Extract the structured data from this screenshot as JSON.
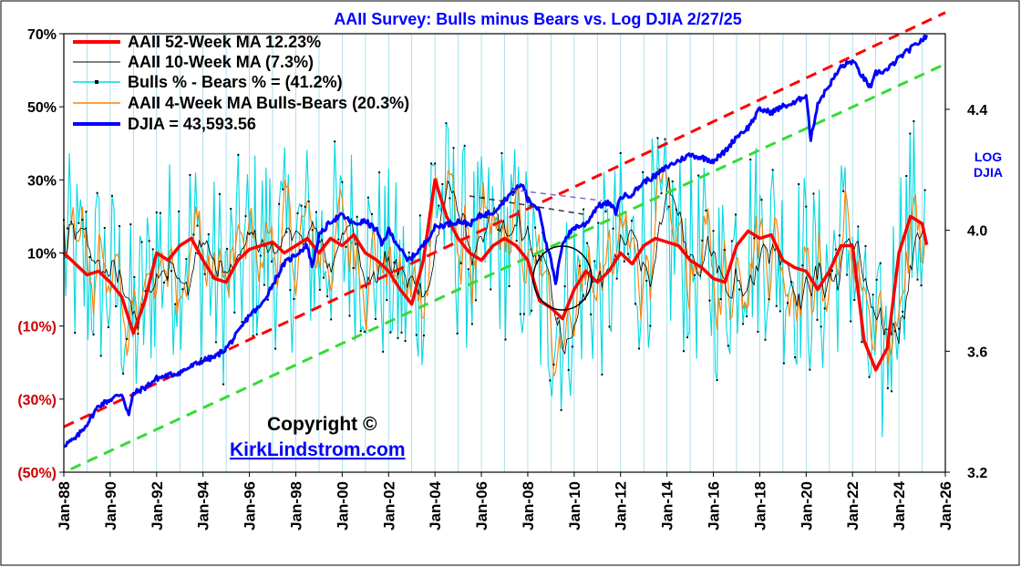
{
  "chart_data": {
    "type": "line",
    "title": "AAII Survey: Bulls minus Bears vs. Log DJIA  2/27/25",
    "y_right_label_line1": "LOG",
    "y_right_label_line2": "DJIA",
    "x_ticks": [
      "Jan-88",
      "Jan-90",
      "Jan-92",
      "Jan-94",
      "Jan-96",
      "Jan-98",
      "Jan-00",
      "Jan-02",
      "Jan-04",
      "Jan-06",
      "Jan-08",
      "Jan-10",
      "Jan-12",
      "Jan-14",
      "Jan-16",
      "Jan-18",
      "Jan-20",
      "Jan-22",
      "Jan-24",
      "Jan-26"
    ],
    "x_range": [
      1988,
      2026
    ],
    "y_left_ticks": [
      {
        "value": 70,
        "label": "70%"
      },
      {
        "value": 50,
        "label": "50%"
      },
      {
        "value": 30,
        "label": "30%"
      },
      {
        "value": 10,
        "label": "10%"
      },
      {
        "value": -10,
        "label": "(10%)"
      },
      {
        "value": -30,
        "label": "(30%)"
      },
      {
        "value": -50,
        "label": "(50%)"
      }
    ],
    "y_left_range": [
      -50,
      70
    ],
    "y_right_ticks": [
      {
        "value": 4.4,
        "label": "4.4"
      },
      {
        "value": 4.0,
        "label": "4.0"
      },
      {
        "value": 3.6,
        "label": "3.6"
      },
      {
        "value": 3.2,
        "label": "3.2"
      }
    ],
    "y_right_range": [
      3.2,
      4.65
    ],
    "grid": "vertical",
    "legend_position": "top-left",
    "series": [
      {
        "name": "AAII 52-Week MA 12.23%",
        "axis": "left",
        "color": "#ff0000",
        "x": [
          1988.0,
          1988.5,
          1989.0,
          1989.5,
          1990.0,
          1990.5,
          1991.0,
          1991.5,
          1992.0,
          1992.5,
          1993.0,
          1993.5,
          1994.0,
          1994.5,
          1995.0,
          1995.5,
          1996.0,
          1996.5,
          1997.0,
          1997.5,
          1998.0,
          1998.5,
          1999.0,
          1999.5,
          2000.0,
          2000.5,
          2001.0,
          2001.5,
          2002.0,
          2002.5,
          2003.0,
          2003.5,
          2004.0,
          2004.5,
          2005.0,
          2005.5,
          2006.0,
          2006.5,
          2007.0,
          2007.5,
          2008.0,
          2008.5,
          2009.0,
          2009.5,
          2010.0,
          2010.5,
          2011.0,
          2011.5,
          2012.0,
          2012.5,
          2013.0,
          2013.5,
          2014.0,
          2014.5,
          2015.0,
          2015.5,
          2016.0,
          2016.5,
          2017.0,
          2017.5,
          2018.0,
          2018.5,
          2019.0,
          2019.5,
          2020.0,
          2020.5,
          2021.0,
          2021.5,
          2022.0,
          2022.5,
          2023.0,
          2023.5,
          2024.0,
          2024.5,
          2025.0,
          2025.2
        ],
        "y": [
          10,
          7,
          4,
          5,
          2,
          -2,
          -12,
          -3,
          10,
          8,
          12,
          14,
          8,
          3,
          2,
          8,
          11,
          12,
          13,
          10,
          12,
          14,
          10,
          14,
          12,
          15,
          10,
          8,
          5,
          0,
          -4,
          8,
          30,
          20,
          14,
          10,
          8,
          12,
          14,
          12,
          8,
          -3,
          -5,
          -8,
          0,
          5,
          2,
          5,
          10,
          7,
          12,
          14,
          13,
          12,
          8,
          6,
          3,
          2,
          12,
          16,
          14,
          15,
          8,
          6,
          5,
          0,
          5,
          12,
          12,
          -14,
          -22,
          -16,
          10,
          20,
          18,
          12.23
        ]
      },
      {
        "name": "DJIA =  43,593.56",
        "axis": "right",
        "color": "#0000ff",
        "x": [
          1988.0,
          1988.5,
          1989.0,
          1989.5,
          1990.0,
          1990.5,
          1990.8,
          1991.0,
          1991.5,
          1992.0,
          1992.5,
          1993.0,
          1993.5,
          1994.0,
          1994.5,
          1995.0,
          1995.5,
          1996.0,
          1996.5,
          1997.0,
          1997.5,
          1998.0,
          1998.5,
          1998.7,
          1999.0,
          1999.5,
          2000.0,
          2000.5,
          2001.0,
          2001.5,
          2001.7,
          2002.0,
          2002.5,
          2002.8,
          2003.0,
          2003.5,
          2004.0,
          2004.5,
          2005.0,
          2005.5,
          2006.0,
          2006.5,
          2007.0,
          2007.5,
          2007.8,
          2008.0,
          2008.5,
          2008.8,
          2009.0,
          2009.2,
          2009.5,
          2010.0,
          2010.5,
          2011.0,
          2011.5,
          2011.8,
          2012.0,
          2012.5,
          2013.0,
          2013.5,
          2014.0,
          2014.5,
          2015.0,
          2015.5,
          2016.0,
          2016.5,
          2017.0,
          2017.5,
          2018.0,
          2018.5,
          2019.0,
          2019.5,
          2020.0,
          2020.2,
          2020.5,
          2021.0,
          2021.5,
          2022.0,
          2022.5,
          2022.8,
          2023.0,
          2023.5,
          2024.0,
          2024.5,
          2025.0,
          2025.2
        ],
        "y": [
          3.29,
          3.31,
          3.36,
          3.42,
          3.44,
          3.46,
          3.39,
          3.46,
          3.48,
          3.51,
          3.52,
          3.53,
          3.55,
          3.57,
          3.58,
          3.61,
          3.66,
          3.72,
          3.75,
          3.82,
          3.89,
          3.92,
          3.95,
          3.88,
          3.98,
          4.03,
          4.05,
          4.02,
          4.03,
          4.0,
          3.95,
          4.0,
          3.94,
          3.9,
          3.91,
          3.95,
          4.01,
          4.02,
          4.03,
          4.02,
          4.05,
          4.06,
          4.1,
          4.14,
          4.15,
          4.1,
          4.07,
          3.95,
          3.9,
          3.82,
          3.96,
          4.01,
          4.02,
          4.08,
          4.09,
          4.06,
          4.11,
          4.12,
          4.16,
          4.18,
          4.21,
          4.23,
          4.25,
          4.24,
          4.23,
          4.26,
          4.31,
          4.34,
          4.4,
          4.39,
          4.41,
          4.42,
          4.45,
          4.3,
          4.42,
          4.48,
          4.54,
          4.56,
          4.5,
          4.47,
          4.52,
          4.53,
          4.57,
          4.6,
          4.63,
          4.64
        ]
      }
    ],
    "noisy_series": [
      {
        "name": "AAII 10-Week MA (7.3%)",
        "color": "#000000"
      },
      {
        "name": "Bulls % - Bears % = (41.2%)",
        "color": "#00d8e0"
      },
      {
        "name": "AAII 4-Week MA Bulls-Bears (20.3%)",
        "color": "#ff8000"
      }
    ],
    "trend_lines": [
      {
        "name": "upper-channel",
        "color": "#ff0000",
        "axis": "right",
        "from": [
          1988.0,
          3.35
        ],
        "to": [
          2026.0,
          4.72
        ]
      },
      {
        "name": "lower-channel",
        "color": "#33dd33",
        "axis": "right",
        "from": [
          1988.3,
          3.21
        ],
        "to": [
          2026.0,
          4.55
        ]
      }
    ],
    "annotations": {
      "copyright": "Copyright ©",
      "website": "KirkLindstrom.com"
    },
    "colors": {
      "title": "#0000ff",
      "negative_tick": "#cc0000",
      "right_label": "#0000ff",
      "website": "#0000ff"
    }
  }
}
